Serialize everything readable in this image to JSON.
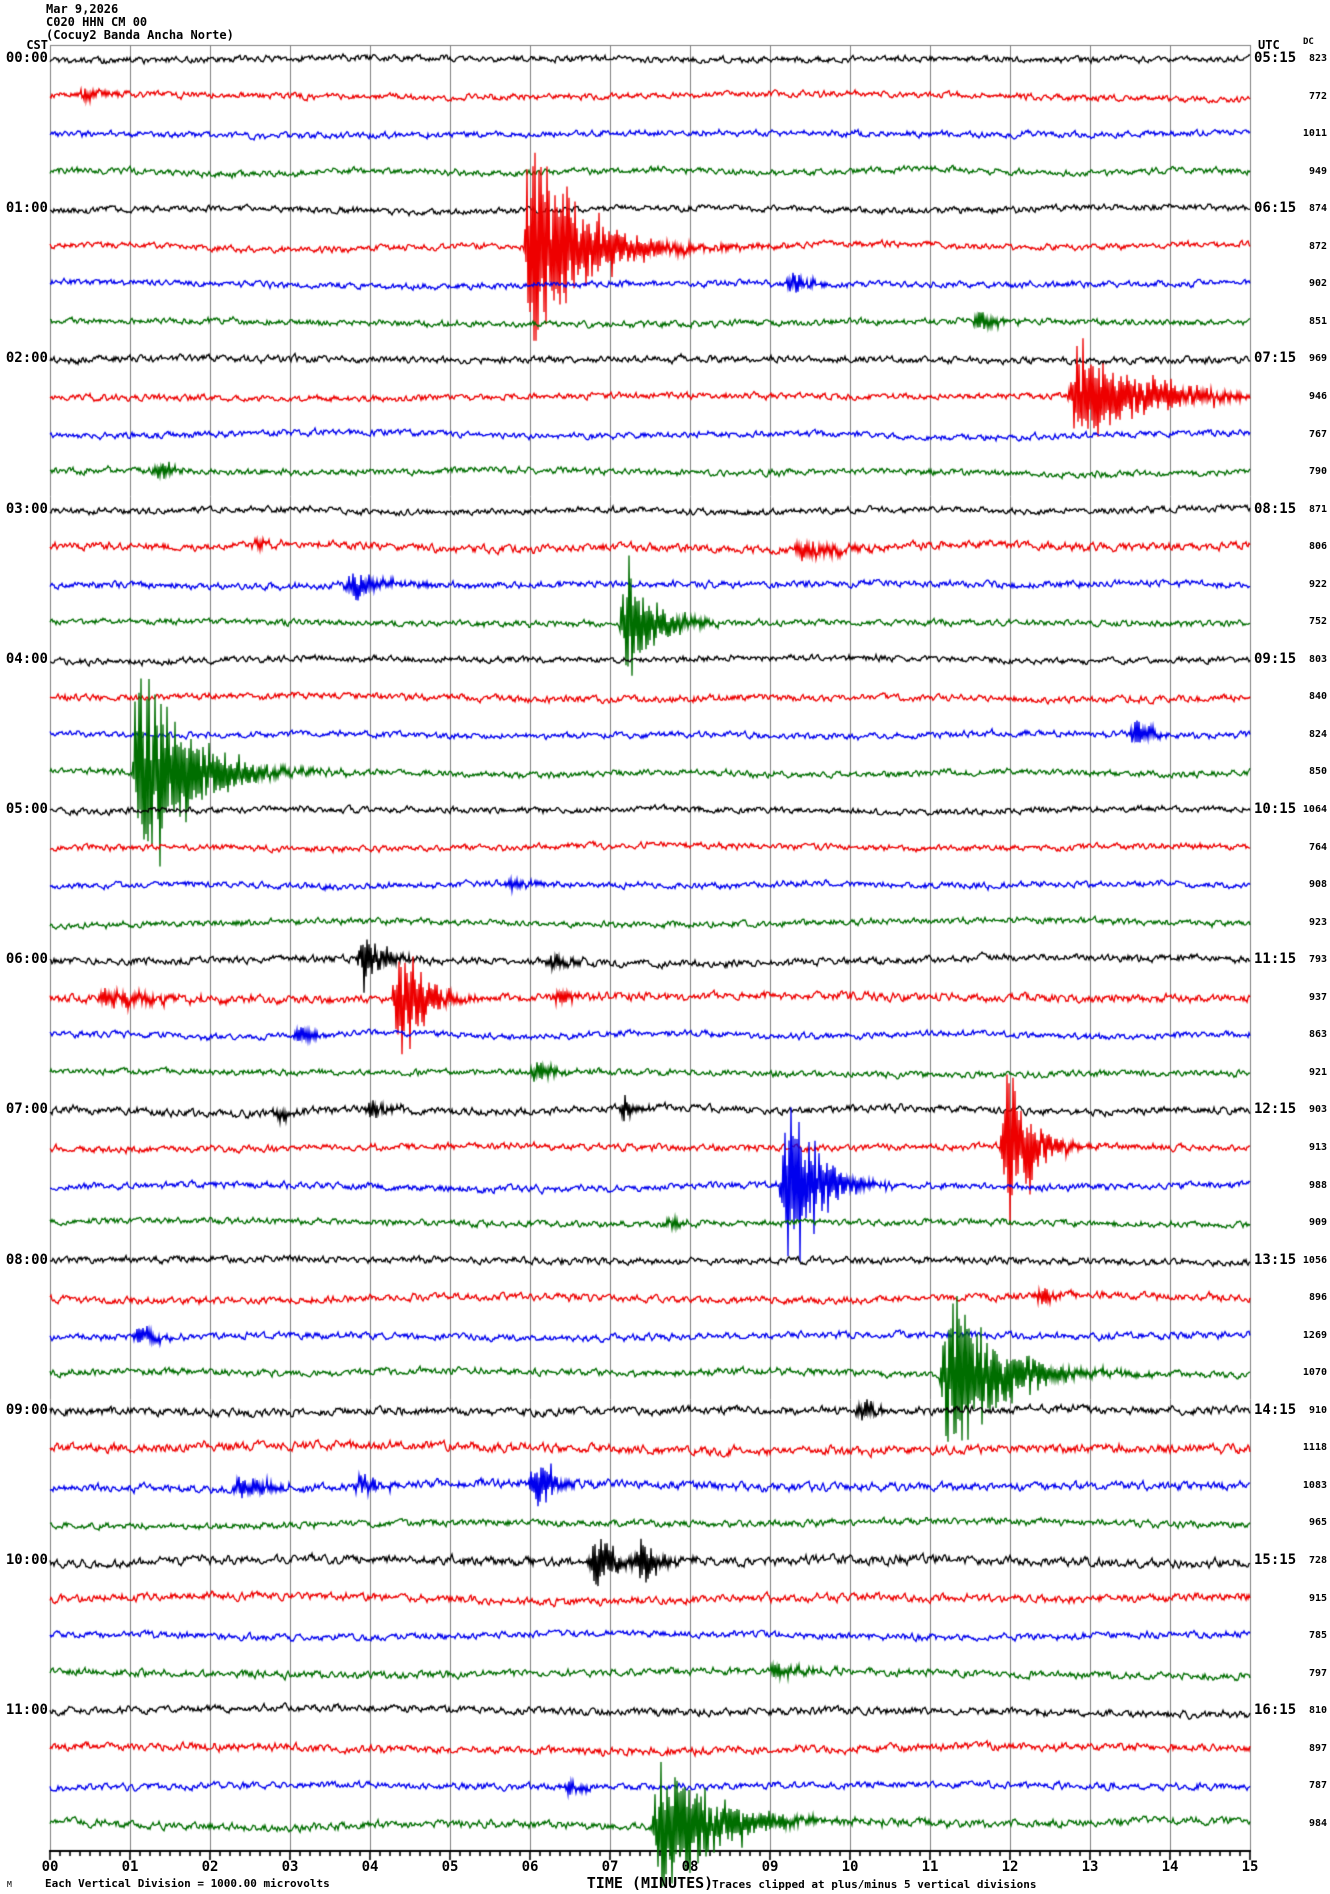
{
  "header": {
    "date": "Mar 9,2026",
    "station": "C020 HHN CM 00",
    "station_description": "(Cocuy2 Banda Ancha Norte)"
  },
  "axes": {
    "left_label": "CST",
    "right_label": "UTC",
    "dc_label": "DC",
    "x_label": "TIME (MINUTES)",
    "x_ticks": [
      "00",
      "01",
      "02",
      "03",
      "04",
      "05",
      "06",
      "07",
      "08",
      "09",
      "10",
      "11",
      "12",
      "13",
      "14",
      "15"
    ],
    "cst_times": [
      "00:00",
      "01:00",
      "02:00",
      "03:00",
      "04:00",
      "05:00",
      "06:00",
      "07:00",
      "08:00",
      "09:00",
      "10:00",
      "11:00"
    ],
    "utc_times": [
      "05:15",
      "06:15",
      "07:15",
      "08:15",
      "09:15",
      "10:15",
      "11:15",
      "12:15",
      "13:15",
      "14:15",
      "15:15",
      "16:15"
    ]
  },
  "footer": {
    "mark": "M",
    "left": "Each Vertical Division = 1000.00 microvolts",
    "right": "Traces clipped at plus/minus 5 vertical divisions"
  },
  "colors": {
    "trace_cycle": [
      "#000000",
      "#ee0000",
      "#0000ee",
      "#006e00"
    ],
    "grid": "#808080",
    "axis": "#000000"
  },
  "chart_data": {
    "type": "seismogram-helicorder",
    "title": "C020 HHN CM 00 (Cocuy2 Banda Ancha Norte) Mar 9,2026",
    "lines": 48,
    "minutes_per_line": 15,
    "traces_per_hour": 4,
    "minor_ticks_per_minute": 8,
    "clip_divisions": 5,
    "microvolts_per_division": 1000.0,
    "dc_offsets": [
      823,
      772,
      1011,
      949,
      874,
      872,
      902,
      851,
      969,
      946,
      767,
      790,
      871,
      806,
      922,
      752,
      803,
      840,
      824,
      850,
      1064,
      764,
      908,
      923,
      793,
      937,
      863,
      921,
      903,
      913,
      988,
      909,
      1056,
      896,
      1269,
      1070,
      910,
      1118,
      1083,
      965,
      728,
      915,
      785,
      797,
      810,
      897,
      787,
      984
    ],
    "noise_factor": [
      1,
      1,
      1,
      1,
      1,
      1,
      1,
      1,
      1.1,
      1,
      1,
      1,
      1,
      1.3,
      1.1,
      1,
      1,
      1.1,
      1,
      1,
      1,
      1,
      1,
      1,
      1.2,
      1.4,
      1,
      1,
      1.2,
      1.1,
      1.1,
      1,
      1.1,
      1.2,
      1.1,
      1.1,
      1.3,
      1.5,
      1.4,
      1.1,
      1.5,
      1.3,
      1.1,
      1.2,
      1.2,
      1.3,
      1.1,
      1.3
    ],
    "events": [
      {
        "row": 1,
        "minute": 0.35,
        "amp": 7,
        "dur": 0.4
      },
      {
        "row": 5,
        "minute": 5.95,
        "amp": 100,
        "dur": 1.2
      },
      {
        "row": 6,
        "minute": 9.2,
        "amp": 9,
        "dur": 0.4
      },
      {
        "row": 7,
        "minute": 11.55,
        "amp": 8,
        "dur": 0.4
      },
      {
        "row": 9,
        "minute": 12.75,
        "amp": 45,
        "dur": 1.6
      },
      {
        "row": 11,
        "minute": 1.3,
        "amp": 9,
        "dur": 0.3
      },
      {
        "row": 13,
        "minute": 2.5,
        "amp": 6,
        "dur": 0.3
      },
      {
        "row": 13,
        "minute": 9.3,
        "amp": 9,
        "dur": 1.0
      },
      {
        "row": 14,
        "minute": 3.7,
        "amp": 12,
        "dur": 0.7
      },
      {
        "row": 15,
        "minute": 7.15,
        "amp": 60,
        "dur": 0.6
      },
      {
        "row": 18,
        "minute": 13.5,
        "amp": 14,
        "dur": 0.3
      },
      {
        "row": 19,
        "minute": 1.05,
        "amp": 105,
        "dur": 1.1
      },
      {
        "row": 22,
        "minute": 5.7,
        "amp": 6,
        "dur": 0.4
      },
      {
        "row": 24,
        "minute": 3.85,
        "amp": 22,
        "dur": 0.5
      },
      {
        "row": 24,
        "minute": 6.2,
        "amp": 8,
        "dur": 0.4
      },
      {
        "row": 25,
        "minute": 0.6,
        "amp": 9,
        "dur": 1.2
      },
      {
        "row": 25,
        "minute": 4.3,
        "amp": 65,
        "dur": 0.5
      },
      {
        "row": 25,
        "minute": 6.3,
        "amp": 8,
        "dur": 0.3
      },
      {
        "row": 26,
        "minute": 3.05,
        "amp": 10,
        "dur": 0.3
      },
      {
        "row": 27,
        "minute": 6.0,
        "amp": 9,
        "dur": 0.4
      },
      {
        "row": 28,
        "minute": 2.8,
        "amp": 7,
        "dur": 0.3
      },
      {
        "row": 28,
        "minute": 3.95,
        "amp": 8,
        "dur": 0.4
      },
      {
        "row": 28,
        "minute": 7.1,
        "amp": 9,
        "dur": 0.3
      },
      {
        "row": 29,
        "minute": 11.9,
        "amp": 80,
        "dur": 0.5
      },
      {
        "row": 30,
        "minute": 9.15,
        "amp": 75,
        "dur": 0.7
      },
      {
        "row": 31,
        "minute": 7.7,
        "amp": 6,
        "dur": 0.3
      },
      {
        "row": 33,
        "minute": 12.3,
        "amp": 7,
        "dur": 0.5
      },
      {
        "row": 34,
        "minute": 1.05,
        "amp": 10,
        "dur": 0.4
      },
      {
        "row": 35,
        "minute": 11.15,
        "amp": 85,
        "dur": 1.1
      },
      {
        "row": 36,
        "minute": 10.1,
        "amp": 10,
        "dur": 0.3
      },
      {
        "row": 38,
        "minute": 2.3,
        "amp": 10,
        "dur": 0.7
      },
      {
        "row": 38,
        "minute": 3.8,
        "amp": 8,
        "dur": 0.5
      },
      {
        "row": 38,
        "minute": 6.0,
        "amp": 26,
        "dur": 0.4
      },
      {
        "row": 40,
        "minute": 6.75,
        "amp": 32,
        "dur": 0.4
      },
      {
        "row": 40,
        "minute": 7.3,
        "amp": 16,
        "dur": 0.5
      },
      {
        "row": 43,
        "minute": 9.0,
        "amp": 7,
        "dur": 0.6
      },
      {
        "row": 46,
        "minute": 6.4,
        "amp": 6,
        "dur": 0.3
      },
      {
        "row": 47,
        "minute": 7.55,
        "amp": 60,
        "dur": 1.3
      }
    ]
  }
}
